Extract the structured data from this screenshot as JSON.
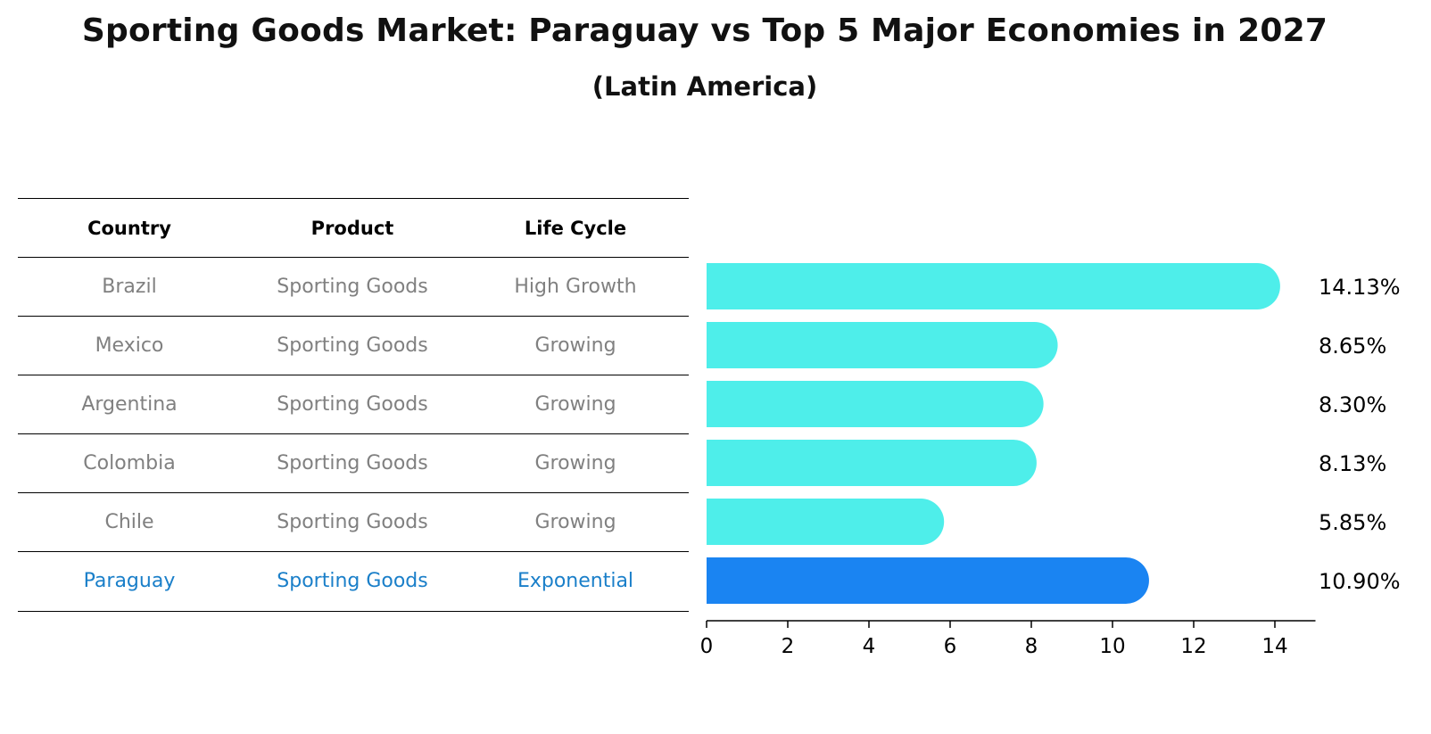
{
  "title": "Sporting Goods Market: Paraguay vs Top 5 Major Economies in 2027",
  "subtitle": "(Latin America)",
  "table": {
    "headers": [
      "Country",
      "Product",
      "Life Cycle"
    ],
    "rows": [
      [
        "Brazil",
        "Sporting Goods",
        "High Growth"
      ],
      [
        "Mexico",
        "Sporting Goods",
        "Growing"
      ],
      [
        "Argentina",
        "Sporting Goods",
        "Growing"
      ],
      [
        "Colombia",
        "Sporting Goods",
        "Growing"
      ],
      [
        "Chile",
        "Sporting Goods",
        "Growing"
      ],
      [
        "Paraguay",
        "Sporting Goods",
        "Exponential"
      ]
    ],
    "highlight_row": 5
  },
  "chart_data": {
    "type": "bar",
    "orientation": "horizontal",
    "categories": [
      "Brazil",
      "Mexico",
      "Argentina",
      "Colombia",
      "Chile",
      "Paraguay"
    ],
    "values": [
      14.13,
      8.65,
      8.3,
      8.13,
      5.85,
      10.9
    ],
    "data_labels": [
      "14.13%",
      "8.65%",
      "8.30%",
      "8.13%",
      "5.85%",
      "10.90%"
    ],
    "xlim": [
      0,
      15
    ],
    "xticks": [
      0,
      2,
      4,
      6,
      8,
      10,
      12,
      14
    ],
    "xlabel": "",
    "ylabel": "",
    "colors": {
      "default": "#4eeeea",
      "highlight": "#1a84f2"
    },
    "highlight_index": 5
  }
}
